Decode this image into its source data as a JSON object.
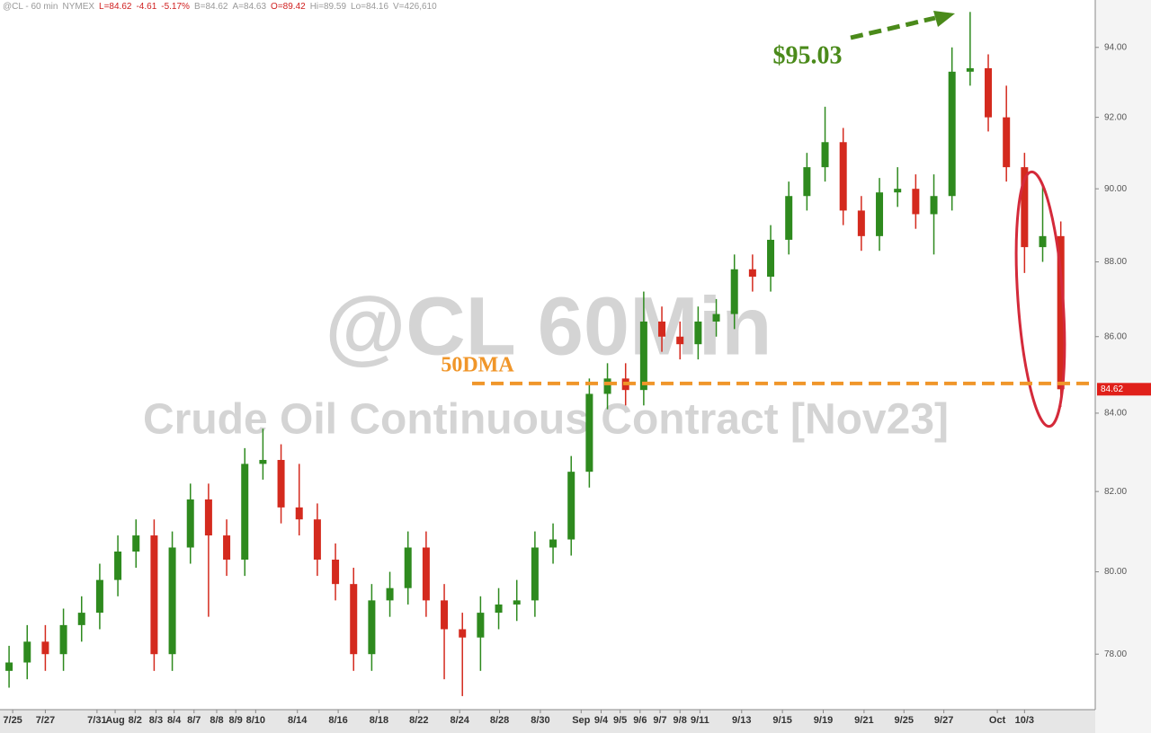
{
  "header": [
    "@CL - 60 min",
    "NYMEX",
    "L=84.62",
    "-4.61",
    "-5.17%",
    "B=84.62",
    "A=84.63",
    "O=89.42",
    "Hi=89.59",
    "Lo=84.16",
    "V=426,610"
  ],
  "chart_data": {
    "type": "candlestick",
    "log_scale": true,
    "watermark": "@CL 60Min",
    "subtitle": "Crude Oil Continuous Contract [Nov23]",
    "peak_annotation": "$95.03",
    "dma_label": "50DMA",
    "dma_value": 84.77,
    "up_color": "#2e8a1e",
    "down_color": "#d42a1e",
    "dma_color": "#f0962a",
    "xlim": [
      -0.5,
      59.9
    ],
    "ylim": [
      76.68,
      95.38
    ],
    "yticks": [
      {
        "value": 78,
        "label": "78.00"
      },
      {
        "value": 80,
        "label": "80.00"
      },
      {
        "value": 82,
        "label": "82.00"
      },
      {
        "value": 84,
        "label": "84.00"
      },
      {
        "value": 86,
        "label": "86.00"
      },
      {
        "value": 88,
        "label": "88.00"
      },
      {
        "value": 90,
        "label": "90.00"
      },
      {
        "value": 92,
        "label": "92.00"
      },
      {
        "value": 94,
        "label": "94.00"
      }
    ],
    "xticks": [
      {
        "value": 0.2,
        "label": "7/25"
      },
      {
        "value": 2,
        "label": "7/27"
      },
      {
        "value": 4.85,
        "label": "7/31"
      },
      {
        "value": 5.85,
        "label": "Aug"
      },
      {
        "value": 6.95,
        "label": "8/2"
      },
      {
        "value": 8.1,
        "label": "8/3"
      },
      {
        "value": 9.1,
        "label": "8/4"
      },
      {
        "value": 10.2,
        "label": "8/7"
      },
      {
        "value": 11.45,
        "label": "8/8"
      },
      {
        "value": 12.5,
        "label": "8/9"
      },
      {
        "value": 13.6,
        "label": "8/10"
      },
      {
        "value": 15.9,
        "label": "8/14"
      },
      {
        "value": 18.15,
        "label": "8/16"
      },
      {
        "value": 20.4,
        "label": "8/18"
      },
      {
        "value": 22.6,
        "label": "8/22"
      },
      {
        "value": 24.85,
        "label": "8/24"
      },
      {
        "value": 27.05,
        "label": "8/28"
      },
      {
        "value": 29.3,
        "label": "8/30"
      },
      {
        "value": 31.55,
        "label": "Sep"
      },
      {
        "value": 32.65,
        "label": "9/4"
      },
      {
        "value": 33.7,
        "label": "9/5"
      },
      {
        "value": 34.8,
        "label": "9/6"
      },
      {
        "value": 35.9,
        "label": "9/7"
      },
      {
        "value": 37,
        "label": "9/8"
      },
      {
        "value": 38.1,
        "label": "9/11"
      },
      {
        "value": 40.4,
        "label": "9/13"
      },
      {
        "value": 42.65,
        "label": "9/15"
      },
      {
        "value": 44.9,
        "label": "9/19"
      },
      {
        "value": 47.15,
        "label": "9/21"
      },
      {
        "value": 49.35,
        "label": "9/25"
      },
      {
        "value": 51.55,
        "label": "9/27"
      },
      {
        "value": 54.5,
        "label": "Oct"
      },
      {
        "value": 56,
        "label": "10/3"
      }
    ],
    "open": [
      77.6,
      77.8,
      78.3,
      78.0,
      78.7,
      79.0,
      79.8,
      80.5,
      80.9,
      78.0,
      80.6,
      81.8,
      80.9,
      80.3,
      82.7,
      82.8,
      81.6,
      81.3,
      80.3,
      79.7,
      78.0,
      79.3,
      79.6,
      80.6,
      79.3,
      78.6,
      78.4,
      79.0,
      79.2,
      79.3,
      80.6,
      80.8,
      82.5,
      84.5,
      84.9,
      84.6,
      86.4,
      86.0,
      85.8,
      86.4,
      86.6,
      87.8,
      87.6,
      88.6,
      89.8,
      90.6,
      91.3,
      89.4,
      88.7,
      89.9,
      90.0,
      89.3,
      89.8,
      93.3,
      93.4,
      92.0,
      90.6,
      88.4,
      88.7
    ],
    "high": [
      78.2,
      78.7,
      78.7,
      79.1,
      79.4,
      80.2,
      80.9,
      81.3,
      81.3,
      81.0,
      82.2,
      82.2,
      81.3,
      83.1,
      83.6,
      83.2,
      82.7,
      81.7,
      80.7,
      80.1,
      79.7,
      80.0,
      81.0,
      81.0,
      79.7,
      79.0,
      79.4,
      79.6,
      79.8,
      81.0,
      81.2,
      82.9,
      84.9,
      85.3,
      85.3,
      87.2,
      86.8,
      86.4,
      86.8,
      87.0,
      88.2,
      88.2,
      89.0,
      90.2,
      91.0,
      92.3,
      91.7,
      89.8,
      90.3,
      90.6,
      90.4,
      90.4,
      94.0,
      95.03,
      93.8,
      92.9,
      91.0,
      90.1,
      89.1
    ],
    "low": [
      77.2,
      77.4,
      77.6,
      77.6,
      78.3,
      78.6,
      79.4,
      80.1,
      77.6,
      77.6,
      80.2,
      78.9,
      79.9,
      79.9,
      82.3,
      81.2,
      80.9,
      79.9,
      79.3,
      77.6,
      77.6,
      78.9,
      79.2,
      78.9,
      77.4,
      77.0,
      77.6,
      78.6,
      78.8,
      78.9,
      80.2,
      80.4,
      82.1,
      84.1,
      84.2,
      84.2,
      85.6,
      85.4,
      85.4,
      86.0,
      86.2,
      87.2,
      87.2,
      88.2,
      89.4,
      90.2,
      89.0,
      88.3,
      88.3,
      89.5,
      88.9,
      88.2,
      89.4,
      92.9,
      91.6,
      90.2,
      87.7,
      88.0,
      84.16
    ],
    "close": [
      77.8,
      78.3,
      78.0,
      78.7,
      79.0,
      79.8,
      80.5,
      80.9,
      78.0,
      80.6,
      81.8,
      80.9,
      80.3,
      82.7,
      82.8,
      81.6,
      81.3,
      80.3,
      79.7,
      78.0,
      79.3,
      79.6,
      80.6,
      79.3,
      78.6,
      78.4,
      79.0,
      79.2,
      79.3,
      80.6,
      80.8,
      82.5,
      84.5,
      84.9,
      84.6,
      86.4,
      86.0,
      85.8,
      86.4,
      86.6,
      87.8,
      87.6,
      88.6,
      89.8,
      90.6,
      91.3,
      89.4,
      88.7,
      89.9,
      90.0,
      89.3,
      89.8,
      93.3,
      93.4,
      92.0,
      90.6,
      88.4,
      88.7,
      84.62
    ]
  }
}
